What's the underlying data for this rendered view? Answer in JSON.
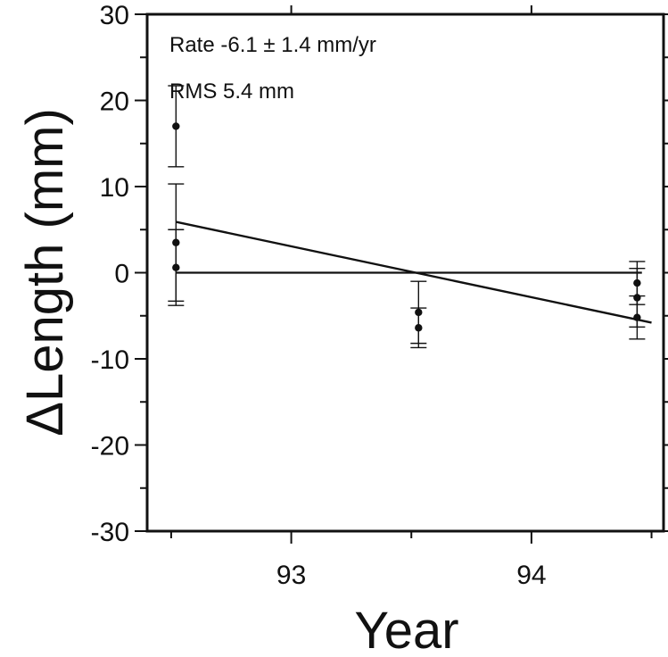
{
  "chart_data": {
    "type": "scatter",
    "xlabel": "Year",
    "ylabel": "ΔLength (mm)",
    "xlim": [
      1992.4,
      1994.55
    ],
    "ylim": [
      -30,
      30
    ],
    "x_ticks": [
      {
        "value": 1993,
        "label": "93"
      },
      {
        "value": 1994,
        "label": "94"
      }
    ],
    "y_ticks": [
      {
        "value": 30,
        "label": "30"
      },
      {
        "value": 20,
        "label": "20"
      },
      {
        "value": 10,
        "label": "10"
      },
      {
        "value": 0,
        "label": "0"
      },
      {
        "value": -10,
        "label": "-10"
      },
      {
        "value": -20,
        "label": "-20"
      },
      {
        "value": -30,
        "label": "-30"
      }
    ],
    "annotations": [
      "Rate -6.1 ± 1.4 mm/yr",
      "RMS 5.4 mm"
    ],
    "points": [
      {
        "x": 1992.52,
        "y": 17.0,
        "err": 4.7
      },
      {
        "x": 1992.52,
        "y": 3.5,
        "err": 6.8
      },
      {
        "x": 1992.52,
        "y": 0.6,
        "err": 4.4
      },
      {
        "x": 1993.53,
        "y": -4.6,
        "err": 3.6
      },
      {
        "x": 1993.53,
        "y": -6.4,
        "err": 2.3
      },
      {
        "x": 1994.44,
        "y": -1.2,
        "err": 2.5
      },
      {
        "x": 1994.44,
        "y": -2.9,
        "err": 3.4
      },
      {
        "x": 1994.44,
        "y": -5.2,
        "err": 2.5
      }
    ],
    "trend_line": {
      "x": [
        1992.52,
        1994.5
      ],
      "y": [
        5.9,
        -5.8
      ]
    },
    "zero_line": {
      "x": [
        1992.52,
        1994.46
      ],
      "y": [
        0,
        0
      ]
    },
    "grid": false,
    "legend": "none"
  }
}
